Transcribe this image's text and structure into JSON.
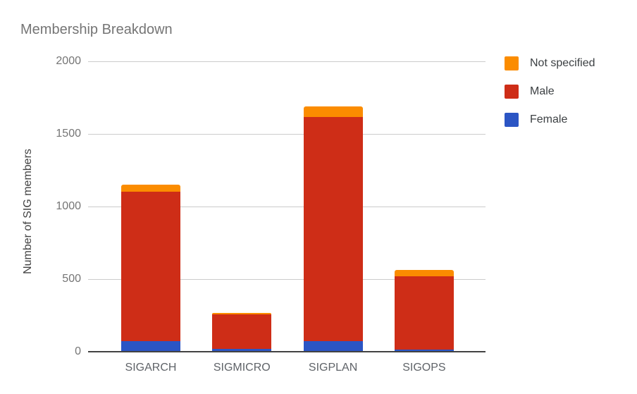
{
  "title": "Membership Breakdown",
  "y_axis_title": "Number of SIG members",
  "chart_data": {
    "type": "bar",
    "stacked": true,
    "title": "Membership Breakdown",
    "xlabel": "",
    "ylabel": "Number of SIG members",
    "categories": [
      "SIGARCH",
      "SIGMICRO",
      "SIGPLAN",
      "SIGOPS"
    ],
    "series": [
      {
        "name": "Female",
        "color": "#2B55C4",
        "values": [
          72,
          18,
          75,
          15
        ]
      },
      {
        "name": "Male",
        "color": "#CE2D17",
        "values": [
          1032,
          241,
          1540,
          503
        ]
      },
      {
        "name": "Not specified",
        "color": "#FB8C00",
        "values": [
          48,
          7,
          72,
          43
        ]
      }
    ],
    "totals": [
      1152,
      266,
      1687,
      561
    ],
    "ylim": [
      0,
      2000
    ],
    "yticks": [
      0,
      500,
      1000,
      1500,
      2000
    ],
    "grid": true,
    "legend_position": "right",
    "legend_order_top_to_bottom": [
      "Not specified",
      "Male",
      "Female"
    ]
  },
  "legend": {
    "items": [
      {
        "label": "Not specified",
        "color": "#FB8C00"
      },
      {
        "label": "Male",
        "color": "#CE2D17"
      },
      {
        "label": "Female",
        "color": "#2B55C4"
      }
    ]
  },
  "colors": {
    "background": "#FFFFFF",
    "title_text": "#757575",
    "y_tick_text": "#757575",
    "x_label_text": "#5F6368",
    "y_axis_title_text": "#424242",
    "legend_text": "#3C4043",
    "gridline": "#CCCCCC",
    "baseline": "#424242"
  }
}
